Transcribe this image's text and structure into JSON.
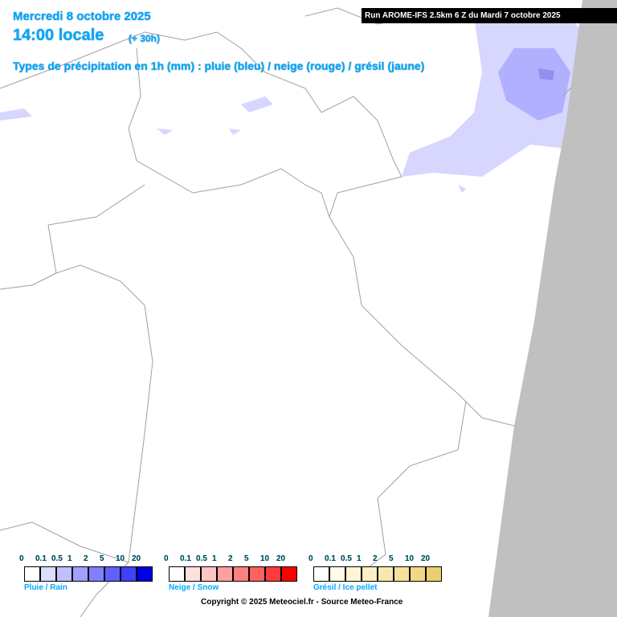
{
  "header": {
    "date": "Mercredi 8 octobre 2025",
    "time": "14:00 locale",
    "offset": "(+ 30h)",
    "title": "Types de précipitation en 1h (mm) : pluie (bleu) / neige (rouge) / grésil (jaune)",
    "run": "Run AROME-IFS 2.5km 6 Z du Mardi 7 octobre 2025"
  },
  "legends": [
    {
      "name": "Pluie / Rain",
      "labels": [
        "0",
        "0.1",
        "0.5",
        "1",
        "2",
        "5",
        "10",
        "20"
      ],
      "colors": [
        "#ffffff",
        "#dcdcff",
        "#c0c0ff",
        "#a0a0ff",
        "#8080ff",
        "#6060ff",
        "#4040ff",
        "#0000e6"
      ]
    },
    {
      "name": "Neige / Snow",
      "labels": [
        "0",
        "0.1",
        "0.5",
        "1",
        "2",
        "5",
        "10",
        "20"
      ],
      "colors": [
        "#ffffff",
        "#ffe0e0",
        "#ffc4c4",
        "#ffa0a0",
        "#ff8080",
        "#ff6060",
        "#ff3c3c",
        "#ff0000"
      ]
    },
    {
      "name": "Grésil / Ice pellet",
      "labels": [
        "0",
        "0.1",
        "0.5",
        "1",
        "2",
        "5",
        "10",
        "20"
      ],
      "colors": [
        "#ffffff",
        "#fffbe8",
        "#fff5d6",
        "#fcefc4",
        "#f8e8b0",
        "#f5e19c",
        "#f0d888",
        "#ecd070"
      ]
    }
  ],
  "copyright": "Copyright © 2025 Meteociel.fr - Source Meteo-France"
}
